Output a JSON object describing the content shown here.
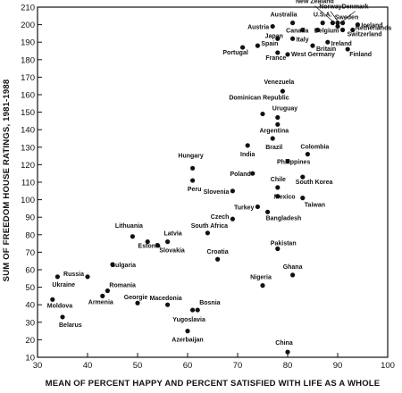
{
  "chart_data": {
    "type": "scatter",
    "xlabel": "MEAN OF PERCENT HAPPY AND PERCENT SATISFIED WITH LIFE AS A WHOLE",
    "ylabel": "SUM OF FREEDOM HOUSE RATINGS, 1981-1988",
    "xlim": [
      30,
      100
    ],
    "ylim": [
      10,
      210
    ],
    "x_ticks": [
      30,
      40,
      50,
      60,
      70,
      80,
      90,
      100
    ],
    "y_ticks": [
      10,
      20,
      30,
      40,
      50,
      60,
      70,
      80,
      90,
      100,
      110,
      120,
      130,
      140,
      150,
      160,
      170,
      180,
      190,
      200,
      210
    ],
    "points": [
      {
        "label": "Australia",
        "x": 81,
        "y": 201
      },
      {
        "label": "U.S.A.",
        "x": 87,
        "y": 201
      },
      {
        "label": "New Zealand",
        "x": 89,
        "y": 201
      },
      {
        "label": "Norway",
        "x": 90,
        "y": 201
      },
      {
        "label": "Denmark",
        "x": 91,
        "y": 201
      },
      {
        "label": "Sweden",
        "x": 90,
        "y": 199
      },
      {
        "label": "Iceland",
        "x": 94,
        "y": 200
      },
      {
        "label": "Netherlands",
        "x": 93,
        "y": 197
      },
      {
        "label": "Switzerland",
        "x": 91,
        "y": 197
      },
      {
        "label": "Austria",
        "x": 77,
        "y": 199
      },
      {
        "label": "Canada",
        "x": 83,
        "y": 197
      },
      {
        "label": "Belgium",
        "x": 86,
        "y": 197
      },
      {
        "label": "Japan",
        "x": 78,
        "y": 192
      },
      {
        "label": "Italy",
        "x": 81,
        "y": 192
      },
      {
        "label": "Ireland",
        "x": 88,
        "y": 190
      },
      {
        "label": "Spain",
        "x": 74,
        "y": 188
      },
      {
        "label": "Britain",
        "x": 85,
        "y": 188
      },
      {
        "label": "Portugal",
        "x": 71,
        "y": 187
      },
      {
        "label": "France",
        "x": 78,
        "y": 184
      },
      {
        "label": "West Germany",
        "x": 80,
        "y": 183
      },
      {
        "label": "Finland",
        "x": 92,
        "y": 186
      },
      {
        "label": "Venezuela",
        "x": 79,
        "y": 162
      },
      {
        "label": "Dominican Republic",
        "x": 75,
        "y": 149
      },
      {
        "label": "Uruguay",
        "x": 78,
        "y": 147
      },
      {
        "label": "Argentina",
        "x": 78,
        "y": 143
      },
      {
        "label": "Brazil",
        "x": 77,
        "y": 135
      },
      {
        "label": "India",
        "x": 72,
        "y": 131
      },
      {
        "label": "Colombia",
        "x": 84,
        "y": 126
      },
      {
        "label": "Philippines",
        "x": 80,
        "y": 122
      },
      {
        "label": "Hungary",
        "x": 61,
        "y": 118
      },
      {
        "label": "Peru",
        "x": 61,
        "y": 111
      },
      {
        "label": "Poland",
        "x": 73,
        "y": 115
      },
      {
        "label": "South Korea",
        "x": 83,
        "y": 113
      },
      {
        "label": "Chile",
        "x": 78,
        "y": 107
      },
      {
        "label": "Slovenia",
        "x": 69,
        "y": 105
      },
      {
        "label": "Mexico",
        "x": 78,
        "y": 102
      },
      {
        "label": "Taiwan",
        "x": 83,
        "y": 101
      },
      {
        "label": "Turkey",
        "x": 74,
        "y": 96
      },
      {
        "label": "Bangladesh",
        "x": 76,
        "y": 93
      },
      {
        "label": "Czech",
        "x": 69,
        "y": 89
      },
      {
        "label": "South Africa",
        "x": 64,
        "y": 81
      },
      {
        "label": "Lithuania",
        "x": 49,
        "y": 79
      },
      {
        "label": "Latvia",
        "x": 56,
        "y": 76
      },
      {
        "label": "Estonia",
        "x": 52,
        "y": 76
      },
      {
        "label": "Slovakia",
        "x": 54,
        "y": 74
      },
      {
        "label": "Pakistan",
        "x": 78,
        "y": 72
      },
      {
        "label": "Croatia",
        "x": 66,
        "y": 66
      },
      {
        "label": "Bulgaria",
        "x": 45,
        "y": 63
      },
      {
        "label": "Russia",
        "x": 40,
        "y": 56
      },
      {
        "label": "Ghana",
        "x": 81,
        "y": 57
      },
      {
        "label": "Nigeria",
        "x": 75,
        "y": 51
      },
      {
        "label": "Romania",
        "x": 44,
        "y": 48
      },
      {
        "label": "Ukraine",
        "x": 34,
        "y": 56
      },
      {
        "label": "Armenia",
        "x": 43,
        "y": 45
      },
      {
        "label": "Moldova",
        "x": 33,
        "y": 43
      },
      {
        "label": "Georgie",
        "x": 50,
        "y": 41
      },
      {
        "label": "Macedonia",
        "x": 56,
        "y": 40
      },
      {
        "label": "Bosnia",
        "x": 62,
        "y": 37
      },
      {
        "label": "Yugoslavia",
        "x": 61,
        "y": 37
      },
      {
        "label": "Belarus",
        "x": 35,
        "y": 33
      },
      {
        "label": "Azerbaijan",
        "x": 60,
        "y": 25
      },
      {
        "label": "China",
        "x": 80,
        "y": 13
      }
    ]
  }
}
